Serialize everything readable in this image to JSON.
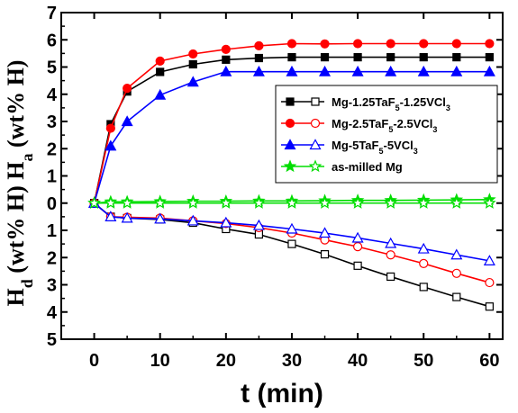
{
  "chart_data": {
    "type": "line",
    "xlabel": "t (min)",
    "ylabel_bottom": "H",
    "ylabel_bottom_sub": "d",
    "ylabel_bottom_rest": " (wt% H) ",
    "ylabel_top": "H",
    "ylabel_top_sub": "a",
    "ylabel_top_rest": " (wt% H)",
    "xlim": [
      -5,
      62
    ],
    "ylim": [
      -5,
      7
    ],
    "x_ticks": [
      0,
      10,
      20,
      30,
      40,
      50,
      60
    ],
    "y_ticks": [
      7,
      6,
      5,
      4,
      3,
      2,
      1,
      0,
      -1,
      -2,
      -3,
      -4,
      -5
    ],
    "y_tick_labels": [
      "7",
      "6",
      "5",
      "4",
      "3",
      "2",
      "1",
      "0",
      "1",
      "2",
      "3",
      "4",
      "5"
    ],
    "legend_position": "right",
    "series": [
      {
        "name": "Mg-1.25TaF5-1.25VCl3",
        "name_parts": [
          "Mg-1.25TaF",
          "5",
          "-1.25VCl",
          "3"
        ],
        "color": "#000000",
        "marker": "square",
        "absorption": {
          "x": [
            0,
            2.5,
            5,
            10,
            15,
            20,
            25,
            30,
            35,
            40,
            45,
            50,
            55,
            60
          ],
          "y": [
            0,
            2.9,
            4.1,
            4.82,
            5.1,
            5.27,
            5.33,
            5.36,
            5.36,
            5.36,
            5.36,
            5.36,
            5.36,
            5.36
          ]
        },
        "desorption": {
          "x": [
            0,
            2.5,
            5,
            10,
            15,
            20,
            25,
            30,
            35,
            40,
            45,
            50,
            55,
            60
          ],
          "y": [
            0,
            -0.5,
            -0.55,
            -0.6,
            -0.72,
            -0.95,
            -1.15,
            -1.5,
            -1.88,
            -2.3,
            -2.7,
            -3.08,
            -3.45,
            -3.8
          ]
        }
      },
      {
        "name": "Mg-2.5TaF5-2.5VCl3",
        "name_parts": [
          "Mg-2.5TaF",
          "5",
          "-2.5VCl",
          "3"
        ],
        "color": "#ff0000",
        "marker": "circle",
        "absorption": {
          "x": [
            0,
            2.5,
            5,
            10,
            15,
            20,
            25,
            30,
            35,
            40,
            45,
            50,
            55,
            60
          ],
          "y": [
            0,
            2.75,
            4.22,
            5.22,
            5.48,
            5.65,
            5.78,
            5.86,
            5.85,
            5.86,
            5.86,
            5.86,
            5.86,
            5.86
          ]
        },
        "desorption": {
          "x": [
            0,
            2.5,
            5,
            10,
            15,
            20,
            25,
            30,
            35,
            40,
            45,
            50,
            55,
            60
          ],
          "y": [
            0,
            -0.5,
            -0.52,
            -0.55,
            -0.65,
            -0.75,
            -0.9,
            -1.1,
            -1.35,
            -1.6,
            -1.9,
            -2.22,
            -2.58,
            -2.92
          ]
        }
      },
      {
        "name": "Mg-5TaF5-5VCl3",
        "name_parts": [
          "Mg-5TaF",
          "5",
          "-5VCl",
          "3"
        ],
        "color": "#0000ff",
        "marker": "triangle",
        "absorption": {
          "x": [
            0,
            2.5,
            5,
            10,
            15,
            20,
            25,
            30,
            35,
            40,
            45,
            50,
            55,
            60
          ],
          "y": [
            0,
            2.1,
            3.0,
            3.97,
            4.45,
            4.83,
            4.83,
            4.83,
            4.83,
            4.83,
            4.83,
            4.83,
            4.83,
            4.83
          ]
        },
        "desorption": {
          "x": [
            0,
            2.5,
            5,
            10,
            15,
            20,
            25,
            30,
            35,
            40,
            45,
            50,
            55,
            60
          ],
          "y": [
            0,
            -0.5,
            -0.55,
            -0.58,
            -0.65,
            -0.72,
            -0.82,
            -0.95,
            -1.1,
            -1.28,
            -1.48,
            -1.68,
            -1.9,
            -2.12
          ]
        }
      },
      {
        "name": "as-milled Mg",
        "name_parts": [
          "as-milled Mg",
          "",
          "",
          ""
        ],
        "color": "#00dd00",
        "marker": "star",
        "absorption": {
          "x": [
            0,
            2.5,
            5,
            10,
            15,
            20,
            25,
            30,
            35,
            40,
            45,
            50,
            55,
            60
          ],
          "y": [
            0,
            0.05,
            0.05,
            0.06,
            0.07,
            0.07,
            0.08,
            0.08,
            0.09,
            0.1,
            0.1,
            0.11,
            0.12,
            0.13
          ]
        },
        "desorption": {
          "x": [
            0,
            2.5,
            5,
            10,
            15,
            20,
            25,
            30,
            35,
            40,
            45,
            50,
            55,
            60
          ],
          "y": [
            0,
            0,
            0,
            0,
            0,
            0,
            0,
            0,
            0,
            0,
            0,
            0,
            0,
            0
          ]
        }
      }
    ]
  }
}
